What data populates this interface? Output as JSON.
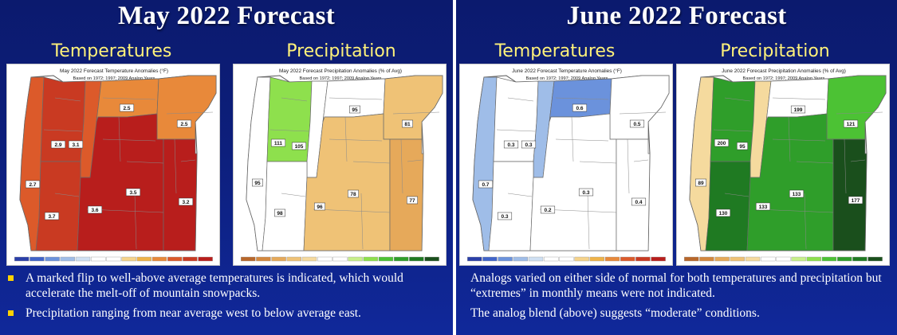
{
  "slides": [
    {
      "title": "May 2022 Forecast",
      "temp_heading": "Temperatures",
      "precip_heading": "Precipitation",
      "temp_map": {
        "caption": [
          "May 2022 Forecast Temperature Anomalies (°F)",
          "Based on 1972; 1997; 2009 Analog Years",
          "Versus 1991-2020 Average"
        ],
        "labels": [
          "2.5",
          "2.5",
          "2.9",
          "3.1",
          "2.7",
          "3.5",
          "3.2",
          "3.7",
          "3.6"
        ]
      },
      "precip_map": {
        "caption": [
          "May 2022 Forecast Precipitation Anomalies (% of Avg)",
          "Based on 1972; 1997; 2009 Analog Years",
          "Versus 1991-2020 Average"
        ],
        "labels": [
          "95",
          "81",
          "111",
          "105",
          "95",
          "78",
          "77",
          "98",
          "96"
        ]
      },
      "bullets": [
        "A marked flip to well-above average temperatures is indicated, which would accelerate the melt-off of mountain snowpacks.",
        "Precipitation ranging from near average west to below average east."
      ]
    },
    {
      "title": "June 2022 Forecast",
      "temp_heading": "Temperatures",
      "precip_heading": "Precipitation",
      "temp_map": {
        "caption": [
          "June 2022 Forecast Temperature Anomalies (°F)",
          "Based on 1972; 1997; 2009 Analog Years",
          "Versus 1991-2020 Average"
        ],
        "labels": [
          "0.6",
          "0.5",
          "0.3",
          "0.3",
          "0.7",
          "0.3",
          "0.4",
          "0.3",
          "0.2"
        ]
      },
      "precip_map": {
        "caption": [
          "June 2022 Forecast Precipitation Anomalies (% of Avg)",
          "Based on 1972; 1997; 2009 Analog Years",
          "Versus 1991-2020 Average"
        ],
        "labels": [
          "199",
          "121",
          "200",
          "95",
          "89",
          "133",
          "177",
          "130",
          "133"
        ]
      },
      "bullets": [
        "Analogs varied on either side of normal for both temperatures and precipitation but “extremes” in monthly means were not indicated.",
        "The analog blend (above) suggests “moderate” conditions."
      ]
    }
  ],
  "colors": {
    "temp_scale": [
      "#2a3fa8",
      "#3f63c9",
      "#6b92dc",
      "#9fbde8",
      "#cfe0f2",
      "#ffffff",
      "#ffffff",
      "#f5d38a",
      "#efb348",
      "#e8893a",
      "#dc5a2a",
      "#c93a22",
      "#b81e1c"
    ],
    "precip_scale": [
      "#b8672a",
      "#d4883e",
      "#e6a95a",
      "#efc276",
      "#f5da9e",
      "#ffffff",
      "#ffffff",
      "#c8ef8a",
      "#8ee04d",
      "#4cc234",
      "#2f9e2a",
      "#1f7a22",
      "#1a4f1c"
    ]
  }
}
